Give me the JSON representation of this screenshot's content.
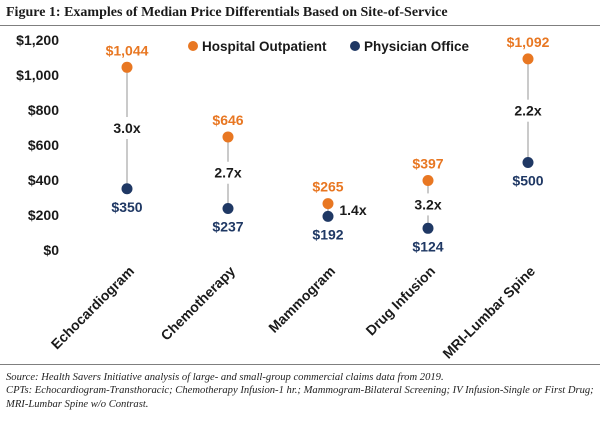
{
  "title": "Figure 1: Examples of Median Price Differentials Based on Site-of-Service",
  "colors": {
    "hospital": "#e87722",
    "physician": "#1f3864",
    "ratio_text": "#1a1a1a",
    "axis_text": "#1a1a1a",
    "connector": "#a6a6a6"
  },
  "chart_data": {
    "type": "dot-range",
    "title": "Figure 1: Examples of Median Price Differentials Based on Site-of-Service",
    "categories": [
      "Echocardiogram",
      "Chemotherapy",
      "Mammogram",
      "Drug Infusion",
      "MRI-Lumbar Spine"
    ],
    "series": [
      {
        "name": "Hospital Outpatient",
        "values": [
          1044,
          646,
          265,
          397,
          1092
        ],
        "labels": [
          "$1,044",
          "$646",
          "$265",
          "$397",
          "$1,092"
        ]
      },
      {
        "name": "Physician Office",
        "values": [
          350,
          237,
          192,
          124,
          500
        ],
        "labels": [
          "$350",
          "$237",
          "$192",
          "$124",
          "$500"
        ]
      }
    ],
    "ratios": [
      "3.0x",
      "2.7x",
      "1.4x",
      "3.2x",
      "2.2x"
    ],
    "ylim": [
      0,
      1200
    ],
    "yticks": [
      0,
      200,
      400,
      600,
      800,
      1000,
      1200
    ],
    "ytick_labels": [
      "$0",
      "$200",
      "$400",
      "$600",
      "$800",
      "$1,000",
      "$1,200"
    ],
    "legend_position": "top-center",
    "grid": false
  },
  "notes": {
    "source": "Source: Health Savers Initiative analysis of large- and small-group commercial claims data from 2019.",
    "cpts": "CPTs: Echocardiogram-Transthoracic; Chemotherapy Infusion-1 hr.; Mammogram-Bilateral Screening; IV Infusion-Single or First Drug; MRI-Lumbar Spine w/o Contrast."
  }
}
